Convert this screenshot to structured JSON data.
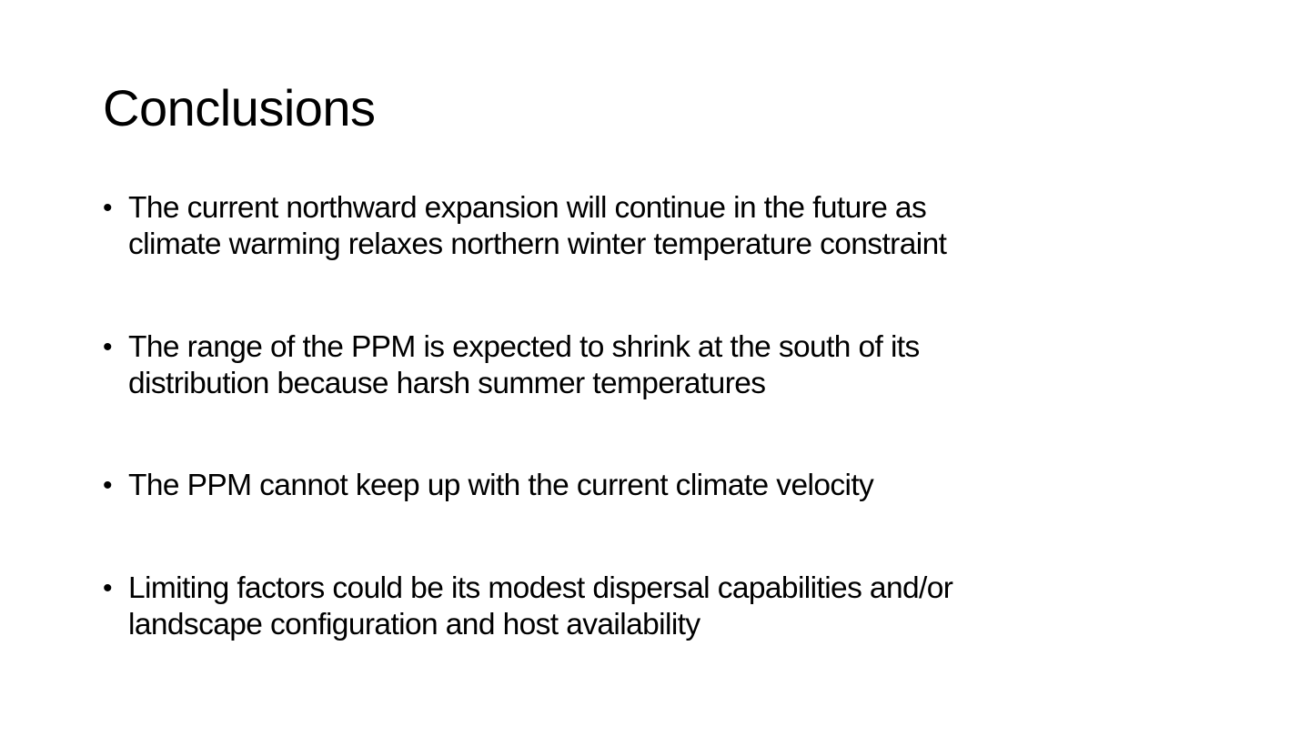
{
  "slide": {
    "title": "Conclusions",
    "bullet_symbol": "•",
    "bullets": [
      {
        "line1": "The current northward expansion will continue in the future as",
        "line2": "climate warming relaxes northern winter temperature constraint"
      },
      {
        "line1": "The range of the PPM is expected to shrink at the south of its",
        "line2": "distribution because harsh summer temperatures"
      },
      {
        "line1": "The PPM cannot keep up with the current climate velocity",
        "line2": ""
      },
      {
        "line1": "Limiting factors could be its modest dispersal capabilities and/or",
        "line2": "landscape configuration and host availability"
      }
    ]
  }
}
